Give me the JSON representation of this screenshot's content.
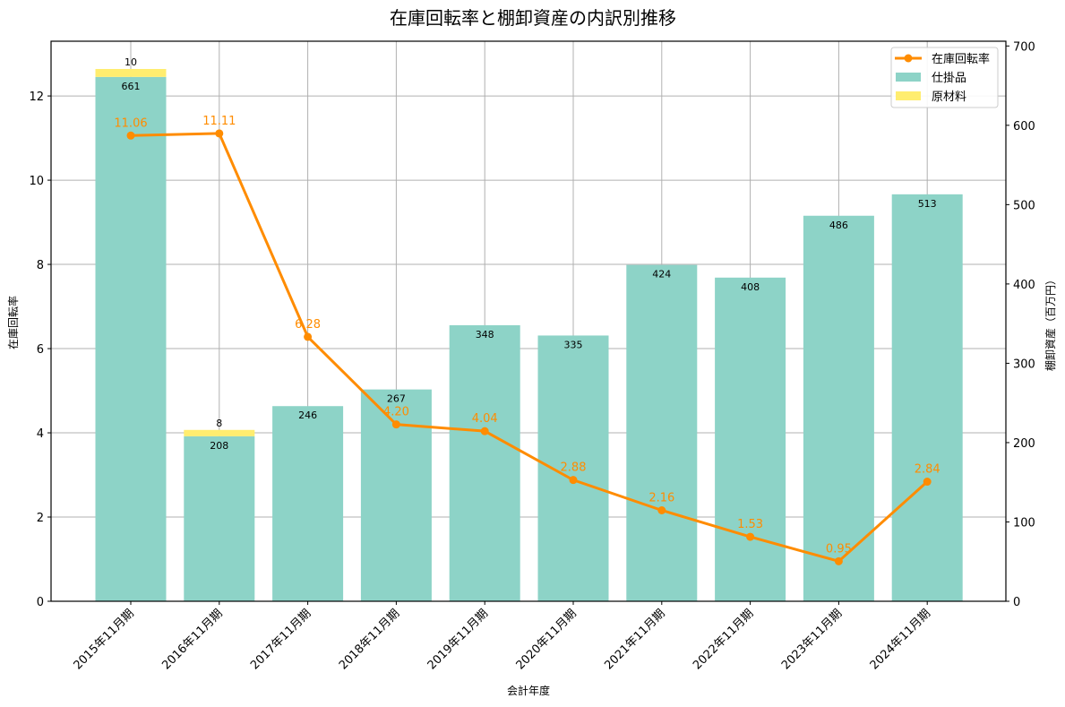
{
  "chart_data": {
    "type": "bar",
    "title": "在庫回転率と棚卸資産の内訳別推移",
    "xlabel": "会計年度",
    "ylabel": "在庫回転率",
    "y2label": "棚卸資産（百万円）",
    "ylim": [
      0,
      13.3
    ],
    "y2lim": [
      0,
      706
    ],
    "yticks": [
      0,
      2,
      4,
      6,
      8,
      10,
      12
    ],
    "y2ticks": [
      0,
      100,
      200,
      300,
      400,
      500,
      600,
      700
    ],
    "grid": true,
    "legend": "top-left",
    "categories": [
      "2015年11月期",
      "2016年11月期",
      "2017年11月期",
      "2018年11月期",
      "2019年11月期",
      "2020年11月期",
      "2021年11月期",
      "2022年11月期",
      "2023年11月期",
      "2024年11月期"
    ],
    "series": [
      {
        "name": "仕掛品",
        "type": "bar",
        "axis": "right",
        "color": "#8dd3c7",
        "values": [
          661,
          208,
          246,
          267,
          348,
          335,
          424,
          408,
          486,
          513
        ]
      },
      {
        "name": "原材料",
        "type": "bar",
        "axis": "right",
        "color": "#ffed6f",
        "values": [
          10,
          8,
          0,
          0,
          0,
          0,
          0,
          0,
          0,
          0
        ]
      },
      {
        "name": "在庫回転率",
        "type": "line",
        "axis": "left",
        "color": "#ff8c00",
        "values": [
          11.06,
          11.11,
          6.28,
          4.2,
          4.04,
          2.88,
          2.16,
          1.53,
          0.95,
          2.84
        ]
      }
    ]
  }
}
